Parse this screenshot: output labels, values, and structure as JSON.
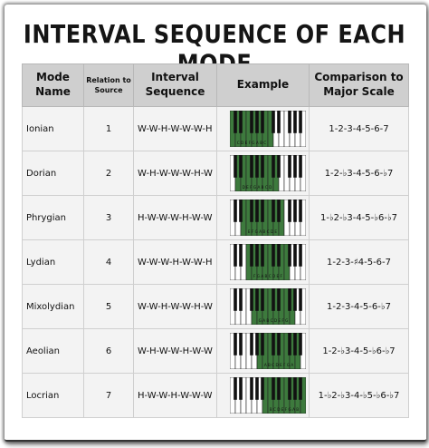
{
  "title": "INTERVAL SEQUENCE OF EACH MODE",
  "headers": {
    "mode": "Mode Name",
    "relation": "Relation to Source",
    "interval": "Interval Sequence",
    "example": "Example",
    "comparison": "Comparison to Major Scale"
  },
  "rows": [
    {
      "mode": "Ionian",
      "relation": "1",
      "sequence": "W-W-H-W-W-W-H",
      "comparison": "1-2-3-4-5-6-7",
      "notes": "C D E F G A B C",
      "start": 0
    },
    {
      "mode": "Dorian",
      "relation": "2",
      "sequence": "W-H-W-W-W-H-W",
      "comparison": "1-2-♭3-4-5-6-♭7",
      "notes": "D E F G A B C D",
      "start": 1
    },
    {
      "mode": "Phrygian",
      "relation": "3",
      "sequence": "H-W-W-W-H-W-W",
      "comparison": "1-♭2-♭3-4-5-♭6-♭7",
      "notes": "E F G A B C D E",
      "start": 2
    },
    {
      "mode": "Lydian",
      "relation": "4",
      "sequence": "W-W-W-H-W-W-H",
      "comparison": "1-2-3-♯4-5-6-7",
      "notes": "F G A B C D E F",
      "start": 3
    },
    {
      "mode": "Mixolydian",
      "relation": "5",
      "sequence": "W-W-H-W-W-H-W",
      "comparison": "1-2-3-4-5-6-♭7",
      "notes": "G A B C D E F G",
      "start": 4
    },
    {
      "mode": "Aeolian",
      "relation": "6",
      "sequence": "W-H-W-W-H-W-W",
      "comparison": "1-2-♭3-4-5-♭6-♭7",
      "notes": "A B C D E F G A",
      "start": 5
    },
    {
      "mode": "Locrian",
      "relation": "7",
      "sequence": "H-W-W-H-W-W-W",
      "comparison": "1-♭2-♭3-4-♭5-♭6-♭7",
      "notes": "B C D E F G A B",
      "start": 6
    }
  ],
  "colors": {
    "highlight": "#3d7a3d",
    "header_bg": "#cfcfcf",
    "cell_bg": "#f3f3f3"
  }
}
